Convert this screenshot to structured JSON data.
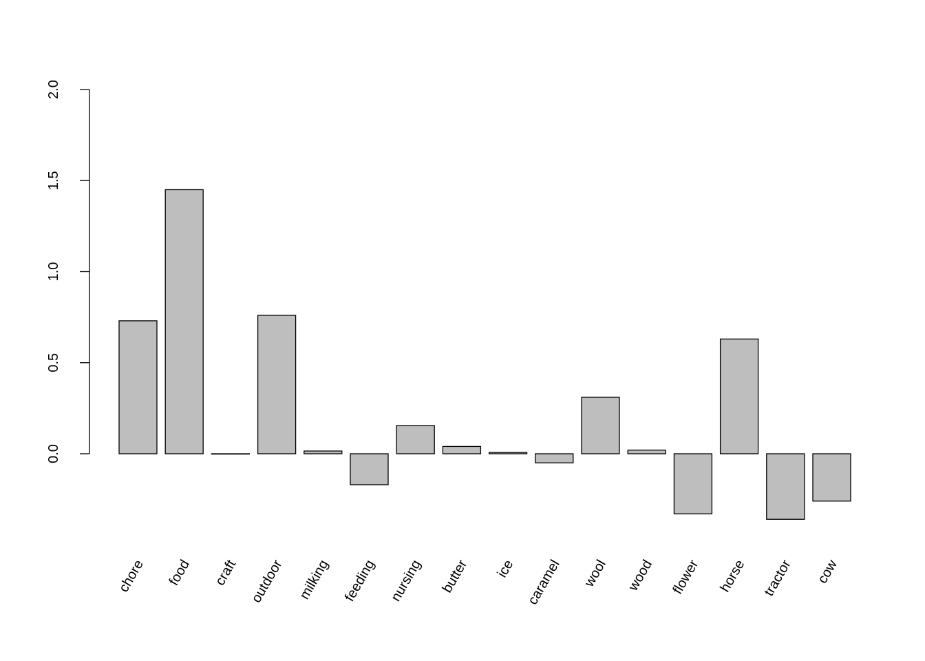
{
  "chart_data": {
    "type": "bar",
    "categories": [
      "chore",
      "food",
      "craft",
      "outdoor",
      "milking",
      "feeding",
      "nursing",
      "butter",
      "ice",
      "caramel",
      "wool",
      "wood",
      "flower",
      "horse",
      "tractor",
      "cow"
    ],
    "values": [
      0.73,
      1.45,
      0.0,
      0.76,
      0.015,
      -0.17,
      0.155,
      0.04,
      0.007,
      -0.05,
      0.31,
      0.02,
      -0.33,
      0.63,
      -0.36,
      -0.26
    ],
    "yticks": [
      "0.0",
      "0.5",
      "1.0",
      "1.5",
      "2.0"
    ],
    "ylim": [
      -0.37,
      2.0
    ],
    "title": "",
    "xlabel": "",
    "ylabel": "",
    "bar_color": "#bebebe",
    "grid": false,
    "legend": "none"
  }
}
